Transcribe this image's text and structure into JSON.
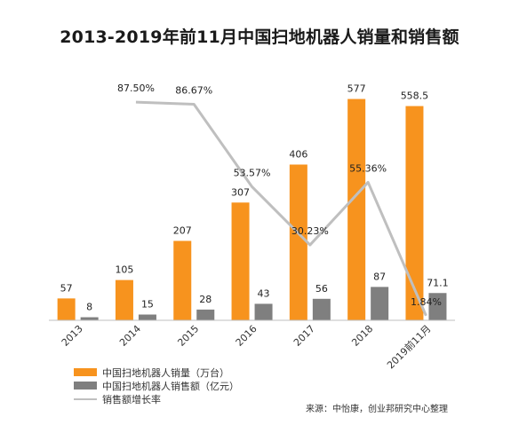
{
  "title": "2013-2019年前11月中国扫地机器人销量和销售额",
  "source": "来源：中怡康，创业邦研究中心整理",
  "colors": {
    "volume": "#f7931e",
    "sales": "#7f7f7f",
    "growth": "#bfbfbf"
  },
  "chart_data": {
    "type": "bar",
    "categories": [
      "2013",
      "2014",
      "2015",
      "2016",
      "2017",
      "2018",
      "2019前11月"
    ],
    "series": [
      {
        "name": "中国扫地机器人销量（万台）",
        "type": "bar",
        "values": [
          57,
          105,
          207,
          307,
          406,
          577,
          558.5
        ],
        "labels": [
          "57",
          "105",
          "207",
          "307",
          "406",
          "577",
          "558.5"
        ]
      },
      {
        "name": "中国扫地机器人销售额（亿元）",
        "type": "bar",
        "values": [
          8,
          15,
          28,
          43,
          56,
          87,
          71.1
        ],
        "labels": [
          "8",
          "15",
          "28",
          "43",
          "56",
          "87",
          "71.1"
        ]
      },
      {
        "name": "销售额增长率",
        "type": "line",
        "axis": "secondary",
        "values": [
          null,
          87.5,
          86.67,
          53.57,
          30.23,
          55.36,
          1.84
        ],
        "labels": [
          "",
          "87.50%",
          "86.67%",
          "53.57%",
          "30.23%",
          "55.36%",
          "1.84%"
        ]
      }
    ],
    "y_primary_lim": [
      0,
      650
    ],
    "y_secondary_lim": [
      0,
      100
    ],
    "grid": false,
    "legend_position": "bottom-left"
  }
}
